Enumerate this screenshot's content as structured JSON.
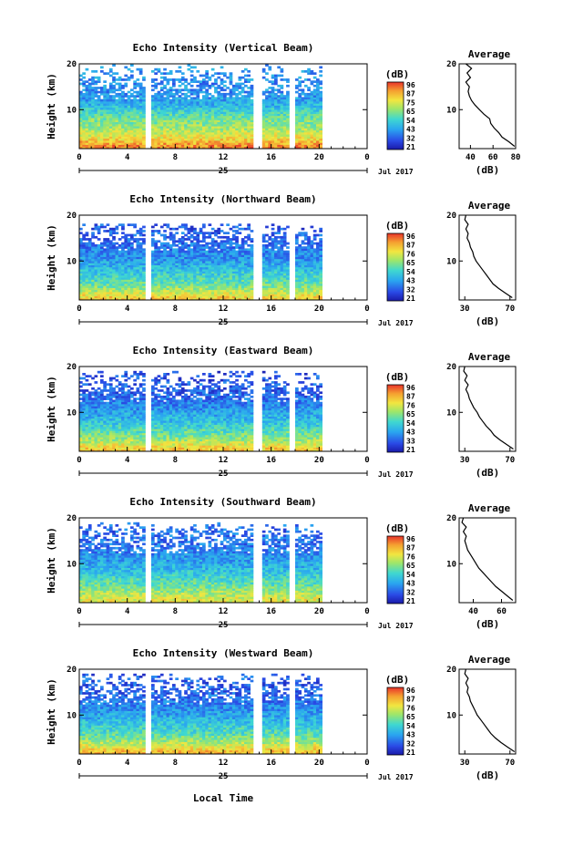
{
  "figure": {
    "xlabel": "Local Time",
    "date_label": "Jul 2017",
    "day_label": "25",
    "cb_unit": "(dB)",
    "avg_title": "Average",
    "avg_xlabel": "(dB)"
  },
  "chart_data": [
    {
      "type": "heatmap",
      "title": "Echo Intensity (Vertical Beam)",
      "xlabel": "Local Time",
      "ylabel": "Height (km)",
      "x_ticks": [
        "0",
        "4",
        "8",
        "12",
        "16",
        "20",
        "0"
      ],
      "xlim": [
        0,
        24
      ],
      "y_ticks": [
        "10",
        "20"
      ],
      "ylim": [
        1.5,
        20
      ],
      "colorbar_ticks": [
        "96",
        "87",
        "75",
        "65",
        "54",
        "43",
        "32",
        "21"
      ],
      "colorbar_range": [
        21,
        96
      ],
      "data_gaps_hours": [
        [
          5.4,
          6.0
        ],
        [
          14.6,
          15.2
        ],
        [
          17.5,
          18.1
        ],
        [
          20.3,
          24
        ]
      ],
      "echo_top_km": 20,
      "average_profile": {
        "x_ticks": [
          "40",
          "60",
          "80"
        ],
        "xlim": [
          30,
          80
        ],
        "height_km": [
          2,
          3,
          4,
          5,
          6,
          7,
          8,
          9,
          10,
          11,
          12,
          13,
          14,
          15,
          16,
          17,
          18,
          19,
          20
        ],
        "db": [
          79,
          74,
          68,
          65,
          61,
          58,
          57,
          52,
          48,
          44,
          41,
          39,
          38,
          39,
          36,
          40,
          37,
          41,
          36
        ]
      }
    },
    {
      "type": "heatmap",
      "title": "Echo Intensity (Northward Beam)",
      "xlabel": "Local Time",
      "ylabel": "Height (km)",
      "x_ticks": [
        "0",
        "4",
        "8",
        "12",
        "16",
        "20",
        "0"
      ],
      "xlim": [
        0,
        24
      ],
      "y_ticks": [
        "10",
        "20"
      ],
      "ylim": [
        1.5,
        20
      ],
      "colorbar_ticks": [
        "96",
        "87",
        "76",
        "65",
        "54",
        "43",
        "32",
        "21"
      ],
      "colorbar_range": [
        21,
        96
      ],
      "data_gaps_hours": [
        [
          5.4,
          6.0
        ],
        [
          14.6,
          15.2
        ],
        [
          17.5,
          18.1
        ],
        [
          20.3,
          24
        ]
      ],
      "echo_top_km": 18,
      "average_profile": {
        "x_ticks": [
          "30",
          "70"
        ],
        "xlim": [
          25,
          75
        ],
        "height_km": [
          2,
          3,
          4,
          5,
          6,
          7,
          8,
          9,
          10,
          11,
          12,
          13,
          14,
          15,
          16,
          17,
          18,
          19,
          20
        ],
        "db": [
          72,
          66,
          60,
          55,
          52,
          49,
          46,
          43,
          40,
          38,
          37,
          35,
          34,
          32,
          33,
          31,
          33,
          30,
          31
        ]
      }
    },
    {
      "type": "heatmap",
      "title": "Echo Intensity (Eastward Beam)",
      "xlabel": "Local Time",
      "ylabel": "Height (km)",
      "x_ticks": [
        "0",
        "4",
        "8",
        "12",
        "16",
        "20",
        "0"
      ],
      "xlim": [
        0,
        24
      ],
      "y_ticks": [
        "10",
        "20"
      ],
      "ylim": [
        1.5,
        20
      ],
      "colorbar_ticks": [
        "96",
        "87",
        "76",
        "65",
        "54",
        "43",
        "33",
        "21"
      ],
      "colorbar_range": [
        21,
        96
      ],
      "data_gaps_hours": [
        [
          5.4,
          6.0
        ],
        [
          14.6,
          15.2
        ],
        [
          17.5,
          18.1
        ],
        [
          20.3,
          24
        ]
      ],
      "echo_top_km": 19,
      "average_profile": {
        "x_ticks": [
          "30",
          "70"
        ],
        "xlim": [
          25,
          75
        ],
        "height_km": [
          2,
          3,
          4,
          5,
          6,
          7,
          8,
          9,
          10,
          11,
          12,
          13,
          14,
          15,
          16,
          17,
          18,
          19,
          20
        ],
        "db": [
          73,
          67,
          61,
          56,
          53,
          49,
          46,
          43,
          41,
          38,
          36,
          34,
          33,
          31,
          33,
          30,
          32,
          29,
          30
        ]
      }
    },
    {
      "type": "heatmap",
      "title": "Echo Intensity (Southward Beam)",
      "xlabel": "Local Time",
      "ylabel": "Height (km)",
      "x_ticks": [
        "0",
        "4",
        "8",
        "12",
        "16",
        "20",
        "0"
      ],
      "xlim": [
        0,
        24
      ],
      "y_ticks": [
        "10",
        "20"
      ],
      "ylim": [
        1.5,
        20
      ],
      "colorbar_ticks": [
        "96",
        "87",
        "76",
        "65",
        "54",
        "43",
        "32",
        "21"
      ],
      "colorbar_range": [
        21,
        96
      ],
      "data_gaps_hours": [
        [
          5.4,
          6.0
        ],
        [
          14.6,
          15.2
        ],
        [
          17.5,
          18.1
        ],
        [
          20.3,
          24
        ]
      ],
      "echo_top_km": 19,
      "average_profile": {
        "x_ticks": [
          "40",
          "60"
        ],
        "xlim": [
          30,
          70
        ],
        "height_km": [
          2,
          3,
          4,
          5,
          6,
          7,
          8,
          9,
          10,
          11,
          12,
          13,
          14,
          15,
          16,
          17,
          18,
          19,
          20
        ],
        "db": [
          68,
          64,
          60,
          56,
          53,
          50,
          47,
          44,
          42,
          40,
          38,
          36,
          35,
          34,
          35,
          33,
          35,
          32,
          33
        ]
      }
    },
    {
      "type": "heatmap",
      "title": "Echo Intensity (Westward Beam)",
      "xlabel": "Local Time",
      "ylabel": "Height (km)",
      "x_ticks": [
        "0",
        "4",
        "8",
        "12",
        "16",
        "20",
        "0"
      ],
      "xlim": [
        0,
        24
      ],
      "y_ticks": [
        "10",
        "20"
      ],
      "ylim": [
        1.5,
        20
      ],
      "colorbar_ticks": [
        "96",
        "87",
        "76",
        "65",
        "54",
        "43",
        "32",
        "21"
      ],
      "colorbar_range": [
        21,
        96
      ],
      "data_gaps_hours": [
        [
          5.4,
          6.0
        ],
        [
          14.6,
          15.2
        ],
        [
          17.5,
          18.1
        ],
        [
          20.3,
          24
        ]
      ],
      "echo_top_km": 19,
      "average_profile": {
        "x_ticks": [
          "30",
          "70"
        ],
        "xlim": [
          25,
          75
        ],
        "height_km": [
          2,
          3,
          4,
          5,
          6,
          7,
          8,
          9,
          10,
          11,
          12,
          13,
          14,
          15,
          16,
          17,
          18,
          19,
          20
        ],
        "db": [
          74,
          68,
          62,
          57,
          53,
          50,
          47,
          44,
          41,
          39,
          37,
          35,
          34,
          32,
          33,
          31,
          33,
          30,
          31
        ]
      }
    }
  ]
}
